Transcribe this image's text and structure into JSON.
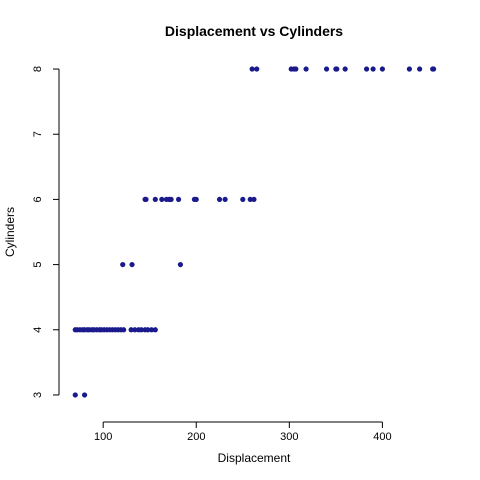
{
  "chart_data": {
    "type": "scatter",
    "title": "Displacement vs Cylinders",
    "xlabel": "Displacement",
    "ylabel": "Cylinders",
    "xlim": [
      68,
      455
    ],
    "ylim": [
      3,
      8
    ],
    "xticks": [
      100,
      200,
      300,
      400
    ],
    "yticks": [
      3,
      4,
      5,
      6,
      7,
      8
    ],
    "grid": false,
    "point_color": "#1a1a8c",
    "series": [
      {
        "points": [
          {
            "x": 70,
            "y": 3
          },
          {
            "x": 80,
            "y": 3
          },
          {
            "x": 70,
            "y": 4
          },
          {
            "x": 72,
            "y": 4
          },
          {
            "x": 75,
            "y": 4
          },
          {
            "x": 78,
            "y": 4
          },
          {
            "x": 80,
            "y": 4
          },
          {
            "x": 83,
            "y": 4
          },
          {
            "x": 85,
            "y": 4
          },
          {
            "x": 88,
            "y": 4
          },
          {
            "x": 90,
            "y": 4
          },
          {
            "x": 93,
            "y": 4
          },
          {
            "x": 96,
            "y": 4
          },
          {
            "x": 98,
            "y": 4
          },
          {
            "x": 101,
            "y": 4
          },
          {
            "x": 104,
            "y": 4
          },
          {
            "x": 107,
            "y": 4
          },
          {
            "x": 110,
            "y": 4
          },
          {
            "x": 113,
            "y": 4
          },
          {
            "x": 116,
            "y": 4
          },
          {
            "x": 119,
            "y": 4
          },
          {
            "x": 122,
            "y": 4
          },
          {
            "x": 130,
            "y": 4
          },
          {
            "x": 134,
            "y": 4
          },
          {
            "x": 138,
            "y": 4
          },
          {
            "x": 141,
            "y": 4
          },
          {
            "x": 145,
            "y": 4
          },
          {
            "x": 148,
            "y": 4
          },
          {
            "x": 152,
            "y": 4
          },
          {
            "x": 156,
            "y": 4
          },
          {
            "x": 121,
            "y": 5
          },
          {
            "x": 131,
            "y": 5
          },
          {
            "x": 183,
            "y": 5
          },
          {
            "x": 145,
            "y": 6
          },
          {
            "x": 146,
            "y": 6
          },
          {
            "x": 156,
            "y": 6
          },
          {
            "x": 163,
            "y": 6
          },
          {
            "x": 168,
            "y": 6
          },
          {
            "x": 171,
            "y": 6
          },
          {
            "x": 173,
            "y": 6
          },
          {
            "x": 181,
            "y": 6
          },
          {
            "x": 198,
            "y": 6
          },
          {
            "x": 200,
            "y": 6
          },
          {
            "x": 225,
            "y": 6
          },
          {
            "x": 231,
            "y": 6
          },
          {
            "x": 250,
            "y": 6
          },
          {
            "x": 258,
            "y": 6
          },
          {
            "x": 262,
            "y": 6
          },
          {
            "x": 260,
            "y": 8
          },
          {
            "x": 265,
            "y": 8
          },
          {
            "x": 302,
            "y": 8
          },
          {
            "x": 305,
            "y": 8
          },
          {
            "x": 307,
            "y": 8
          },
          {
            "x": 318,
            "y": 8
          },
          {
            "x": 340,
            "y": 8
          },
          {
            "x": 350,
            "y": 8
          },
          {
            "x": 351,
            "y": 8
          },
          {
            "x": 360,
            "y": 8
          },
          {
            "x": 383,
            "y": 8
          },
          {
            "x": 390,
            "y": 8
          },
          {
            "x": 400,
            "y": 8
          },
          {
            "x": 429,
            "y": 8
          },
          {
            "x": 440,
            "y": 8
          },
          {
            "x": 454,
            "y": 8
          },
          {
            "x": 455,
            "y": 8
          }
        ]
      }
    ]
  }
}
